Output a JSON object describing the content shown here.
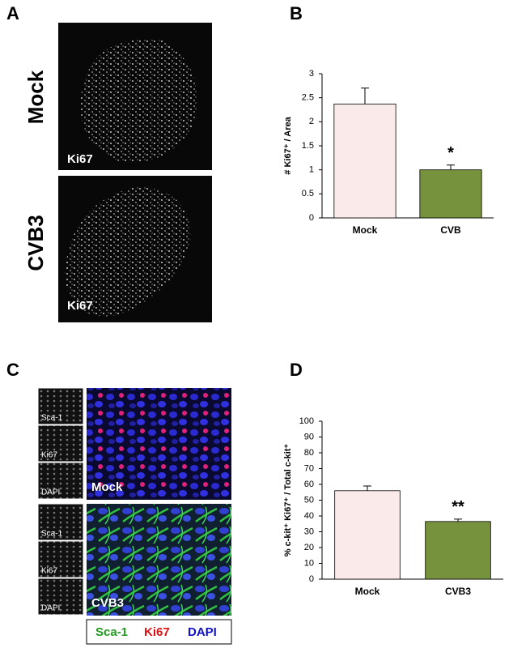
{
  "panel_labels": [
    "A",
    "B",
    "C",
    "D"
  ],
  "panel_a": {
    "images": [
      {
        "row": "Mock",
        "label": "Ki67"
      },
      {
        "row": "CVB3",
        "label": "Ki67"
      }
    ]
  },
  "panel_c": {
    "images": [
      {
        "label": "Mock",
        "channels": [
          "Sca-1",
          "Ki67",
          "DAPI"
        ]
      },
      {
        "label": "CVB3",
        "channels": [
          "Sca-1",
          "Ki67",
          "DAPI"
        ]
      }
    ],
    "legend": [
      {
        "text": "Sca-1",
        "color": "#1f9a1f"
      },
      {
        "text": "Ki67",
        "color": "#e01010"
      },
      {
        "text": "DAPI",
        "color": "#1010c8"
      }
    ]
  },
  "chart_data": [
    {
      "type": "bar",
      "ylabel": "# Ki67⁺ / Area",
      "categories": [
        "Mock",
        "CVB"
      ],
      "values": [
        2.37,
        1.0
      ],
      "errors": [
        0.33,
        0.1
      ],
      "colors": [
        "#fbeaea",
        "#76923c"
      ],
      "value_annotations": [
        null,
        "*"
      ],
      "ylim": [
        0,
        3
      ],
      "yticks": [
        0,
        0.5,
        1,
        1.5,
        2,
        2.5,
        3
      ]
    },
    {
      "type": "bar",
      "ylabel": "% c-kit⁺ Ki67⁺ / Total c-kit⁺",
      "categories": [
        "Mock",
        "CVB3"
      ],
      "values": [
        56,
        36.5
      ],
      "errors": [
        3,
        1.5
      ],
      "colors": [
        "#fbeaea",
        "#76923c"
      ],
      "value_annotations": [
        null,
        "**"
      ],
      "ylim": [
        0,
        100
      ],
      "yticks": [
        0,
        10,
        20,
        30,
        40,
        50,
        60,
        70,
        80,
        90,
        100
      ]
    }
  ]
}
